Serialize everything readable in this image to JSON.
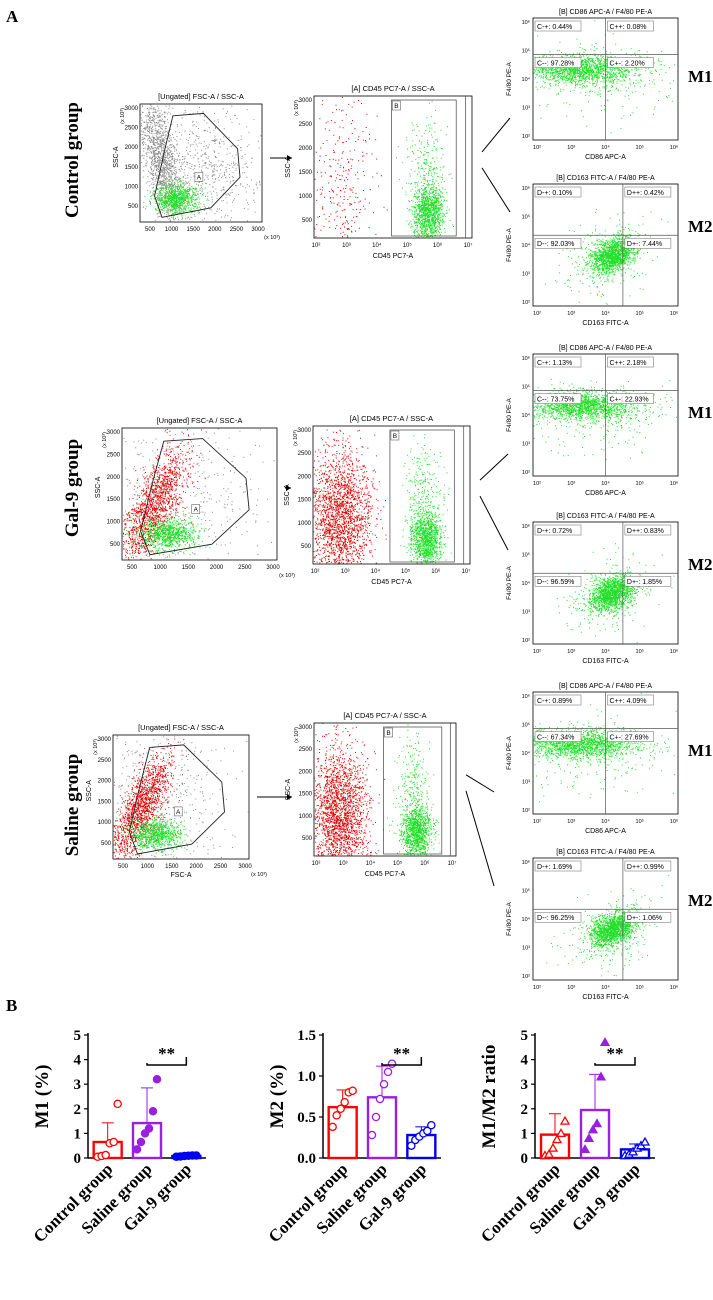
{
  "panel_labels": {
    "a": "A",
    "b": "B"
  },
  "groups": [
    {
      "name": "Control group",
      "gate_plot": {
        "title": "[Ungated] FSC-A / SSC-A",
        "xlabel": "",
        "ylabel": "SSC-A",
        "unit": "(x 10³)",
        "yticks": [
          "3000",
          "2500",
          "2000",
          "1500",
          "1000",
          "500"
        ],
        "xticks": [
          "500",
          "1000",
          "1500",
          "2000",
          "2500",
          "3000"
        ],
        "gate_label": "A",
        "red_fraction": 0.0
      },
      "cd45_plot": {
        "title": "[A] CD45 PC7-A / SSC-A",
        "xlabel": "CD45 PC7-A",
        "ylabel": "SSC-A",
        "unit": "(x 10³)",
        "yticks": [
          "3000",
          "2500",
          "2000",
          "1500",
          "1000",
          "500"
        ],
        "xticks": [
          "10²",
          "10³",
          "10⁴",
          "10⁵",
          "10⁶",
          "10⁷"
        ],
        "gate_label": "B"
      },
      "m1": {
        "label": "M1",
        "title": "[B] CD86 APC-A / F4/80 PE-A",
        "xlabel": "CD86 APC-A",
        "ylabel": "F4/80 PE-A",
        "q_ul": "C-+: 0.44%",
        "q_ur": "C++: 0.08%",
        "q_ll": "C--: 97.28%",
        "q_lr": "C+-: 2.20%",
        "ticks": [
          "10²",
          "10³",
          "10⁴",
          "10⁵",
          "10⁶"
        ]
      },
      "m2": {
        "label": "M2",
        "title": "[B] CD163 FITC-A / F4/80 PE-A",
        "xlabel": "CD163 FITC-A",
        "ylabel": "F4/80 PE-A",
        "q_ul": "D-+: 0.10%",
        "q_ur": "D++: 0.42%",
        "q_ll": "D--: 92.03%",
        "q_lr": "D+-: 7.44%",
        "ticks": [
          "10²",
          "10³",
          "10⁴",
          "10⁵",
          "10⁶"
        ]
      }
    },
    {
      "name": "Gal-9 group",
      "gate_plot": {
        "title": "[Ungated] FSC-A / SSC-A",
        "xlabel": "",
        "ylabel": "SSC-A",
        "unit": "(x 10³)",
        "yticks": [
          "3000",
          "2500",
          "2000",
          "1500",
          "1000",
          "500"
        ],
        "xticks": [
          "500",
          "1000",
          "1500",
          "2000",
          "2500",
          "3000"
        ],
        "gate_label": "A",
        "red_fraction": 0.55
      },
      "cd45_plot": {
        "title": "[A] CD45 PC7-A / SSC-A",
        "xlabel": "CD45 PC7-A",
        "ylabel": "SSC-A",
        "unit": "(x 10³)",
        "yticks": [
          "3000",
          "2500",
          "2000",
          "1500",
          "1000",
          "500"
        ],
        "xticks": [
          "10²",
          "10³",
          "10⁴",
          "10⁵",
          "10⁶",
          "10⁷"
        ],
        "gate_label": "B"
      },
      "m1": {
        "label": "M1",
        "title": "[B] CD86 APC-A / F4/80 PE-A",
        "xlabel": "CD86 APC-A",
        "ylabel": "F4/80 PE-A",
        "q_ul": "C-+: 1.13%",
        "q_ur": "C++: 2.18%",
        "q_ll": "C--: 73.75%",
        "q_lr": "C+-: 22.93%",
        "ticks": [
          "10²",
          "10³",
          "10⁴",
          "10⁵",
          "10⁶"
        ]
      },
      "m2": {
        "label": "M2",
        "title": "[B] CD163 FITC-A / F4/80 PE-A",
        "xlabel": "CD163 FITC-A",
        "ylabel": "F4/80 PE-A",
        "q_ul": "D-+: 0.72%",
        "q_ur": "D++: 0.83%",
        "q_ll": "D--: 96.59%",
        "q_lr": "D+-: 1.85%",
        "ticks": [
          "10²",
          "10³",
          "10⁴",
          "10⁵",
          "10⁶"
        ]
      }
    },
    {
      "name": "Saline group",
      "gate_plot": {
        "title": "[Ungated] FSC-A / SSC-A",
        "xlabel": "FSC-A",
        "ylabel": "SSC-A",
        "unit": "(x 10³)",
        "yticks": [
          "3000",
          "2500",
          "2000",
          "1500",
          "1000",
          "500"
        ],
        "xticks": [
          "500",
          "1000",
          "1500",
          "2000",
          "2500",
          "3000"
        ],
        "gate_label": "A",
        "red_fraction": 0.55
      },
      "cd45_plot": {
        "title": "[A] CD45 PC7-A / SSC-A",
        "xlabel": "CD45 PC7-A",
        "ylabel": "SSC-A",
        "unit": "(x 10³)",
        "yticks": [
          "3000",
          "2500",
          "2000",
          "1500",
          "1000",
          "500"
        ],
        "xticks": [
          "10²",
          "10³",
          "10⁴",
          "10⁵",
          "10⁶",
          "10⁷"
        ],
        "gate_label": "B"
      },
      "m1": {
        "label": "M1",
        "title": "[B] CD86 APC-A / F4/80 PE-A",
        "xlabel": "CD86 APC-A",
        "ylabel": "F4/80 PE-A",
        "q_ul": "C-+: 0.89%",
        "q_ur": "C++: 4.09%",
        "q_ll": "C--: 67.34%",
        "q_lr": "C+-: 27.69%",
        "ticks": [
          "10²",
          "10³",
          "10⁴",
          "10⁵",
          "10⁶"
        ]
      },
      "m2": {
        "label": "M2",
        "title": "[B] CD163 FITC-A / F4/80 PE-A",
        "xlabel": "CD163 FITC-A",
        "ylabel": "F4/80 PE-A",
        "q_ul": "D-+: 1.69%",
        "q_ur": "D++: 0.99%",
        "q_ll": "D--: 96.25%",
        "q_lr": "D+-: 1.06%",
        "ticks": [
          "10²",
          "10³",
          "10⁴",
          "10⁵",
          "10⁶"
        ]
      }
    }
  ],
  "chart_data": [
    {
      "type": "bar",
      "ylabel": "M1 (%)",
      "categories": [
        "Control group",
        "Saline group",
        "Gal-9 group"
      ],
      "values": [
        0.65,
        1.42,
        0.08
      ],
      "errors": [
        0.78,
        1.43,
        0.03
      ],
      "points": [
        [
          0.05,
          0.08,
          0.12,
          0.6,
          0.65,
          2.2
        ],
        [
          0.35,
          0.65,
          1.0,
          1.2,
          1.9,
          3.2
        ],
        [
          0.05,
          0.06,
          0.08,
          0.09,
          0.1,
          0.1
        ]
      ],
      "markers": [
        "circle-open",
        "circle-filled",
        "circle-filled"
      ],
      "ylim": [
        0,
        5
      ],
      "yticks": [
        "0",
        "1",
        "2",
        "3",
        "4",
        "5"
      ],
      "significance": {
        "label": "**",
        "between": [
          1,
          2
        ]
      }
    },
    {
      "type": "bar",
      "ylabel": "M2 (%)",
      "categories": [
        "Control group",
        "Saline group",
        "Gal-9 group"
      ],
      "values": [
        0.62,
        0.74,
        0.28
      ],
      "errors": [
        0.21,
        0.38,
        0.1
      ],
      "points": [
        [
          0.38,
          0.52,
          0.6,
          0.68,
          0.8,
          0.82
        ],
        [
          0.28,
          0.5,
          0.72,
          0.9,
          1.05,
          1.15
        ],
        [
          0.15,
          0.22,
          0.26,
          0.3,
          0.33,
          0.4
        ]
      ],
      "markers": [
        "circle-open",
        "circle-open",
        "circle-open"
      ],
      "ylim": [
        0,
        1.5
      ],
      "yticks": [
        "0.0",
        "0.5",
        "1.0",
        "1.5"
      ],
      "significance": {
        "label": "**",
        "between": [
          1,
          2
        ]
      }
    },
    {
      "type": "bar",
      "ylabel": "M1/M2 ratio",
      "categories": [
        "Control group",
        "Saline group",
        "Gal-9 group"
      ],
      "values": [
        0.95,
        1.95,
        0.35
      ],
      "errors": [
        0.85,
        1.45,
        0.22
      ],
      "points": [
        [
          0.1,
          0.15,
          0.4,
          0.75,
          1.0,
          1.5
        ],
        [
          0.35,
          0.8,
          1.15,
          1.4,
          3.3,
          4.7
        ],
        [
          0.1,
          0.15,
          0.25,
          0.4,
          0.5,
          0.65
        ]
      ],
      "markers": [
        "triangle-open",
        "triangle-filled",
        "triangle-open"
      ],
      "ylim": [
        0,
        5
      ],
      "yticks": [
        "0",
        "1",
        "2",
        "3",
        "4",
        "5"
      ],
      "significance": {
        "label": "**",
        "between": [
          1,
          2
        ]
      }
    }
  ],
  "colors": {
    "control": "#ff0000",
    "saline": "#9b1fe0",
    "gal9": "#0000ee",
    "cells_green": "#22e02a",
    "cells_red": "#e00000",
    "cells_gray": "#8c8c8c"
  }
}
